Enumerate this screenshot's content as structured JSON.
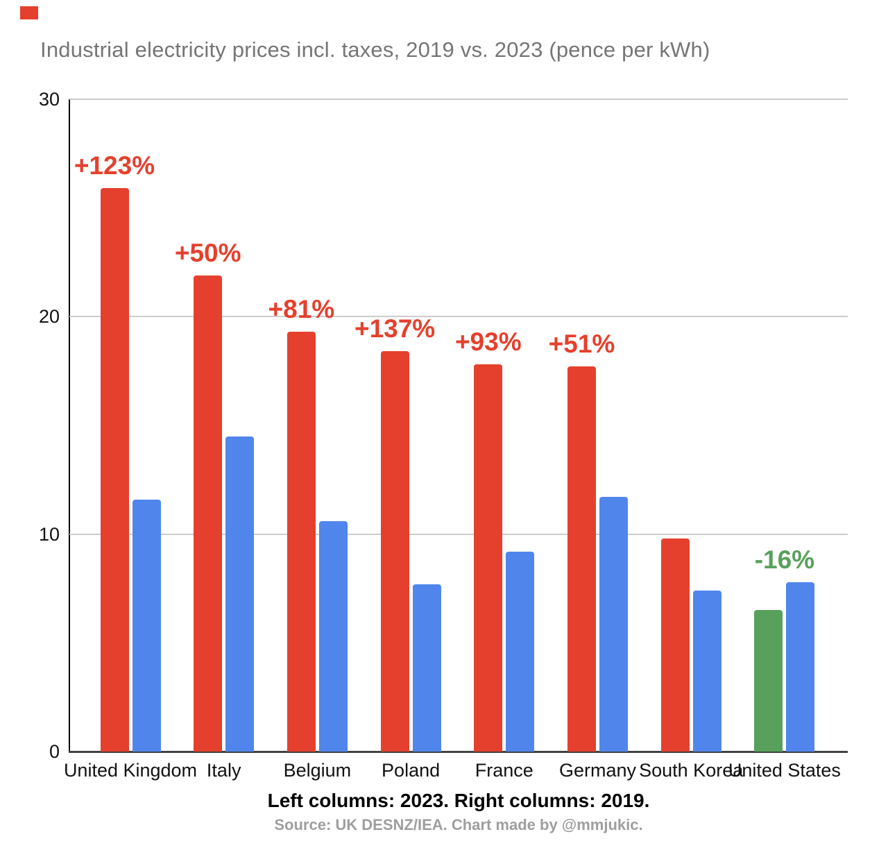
{
  "title": "Industrial electricity prices incl. taxes, 2019 vs. 2023 (pence per kWh)",
  "captions": {
    "legend_note": "Left columns: 2023. Right columns: 2019.",
    "source": "Source: UK DESNZ/IEA. Chart made by @mmjukic."
  },
  "colors": {
    "bar_2023": "#E5402D",
    "bar_2019": "#5086EC",
    "bar_decrease": "#58A15C",
    "annotation_increase": "#E5402D",
    "annotation_decrease": "#58A15C",
    "title_text": "#757575",
    "axis_text": "#111111",
    "gridline": "#CCCCCC",
    "y_axis_line": "#000000",
    "x_axis_line": "#424242",
    "legend_note_text": "#000000",
    "source_text": "#9E9E9E",
    "corner_marker": "#E5402D"
  },
  "chart_data": {
    "type": "bar",
    "title": "Industrial electricity prices incl. taxes, 2019 vs. 2023 (pence per kWh)",
    "xlabel": "",
    "ylabel": "pence per kWh",
    "ylim": [
      0,
      30
    ],
    "yticks": [
      0,
      10,
      20,
      30
    ],
    "grid": true,
    "legend_position": "none",
    "categories": [
      "United Kingdom",
      "Italy",
      "Belgium",
      "Poland",
      "France",
      "Germany",
      "South Korea",
      "United States"
    ],
    "series": [
      {
        "name": "2023",
        "values": [
          25.9,
          21.9,
          19.3,
          18.4,
          17.8,
          17.7,
          9.8,
          6.5
        ],
        "colors": [
          "#E5402D",
          "#E5402D",
          "#E5402D",
          "#E5402D",
          "#E5402D",
          "#E5402D",
          "#E5402D",
          "#58A15C"
        ]
      },
      {
        "name": "2019",
        "values": [
          11.6,
          14.5,
          10.6,
          7.7,
          9.2,
          11.7,
          7.4,
          7.8
        ],
        "colors": [
          "#5086EC",
          "#5086EC",
          "#5086EC",
          "#5086EC",
          "#5086EC",
          "#5086EC",
          "#5086EC",
          "#5086EC"
        ]
      }
    ],
    "annotations": [
      "+123%",
      "+50%",
      "+81%",
      "+137%",
      "+93%",
      "+51%",
      "",
      "-16%"
    ],
    "annotation_colors": [
      "#E5402D",
      "#E5402D",
      "#E5402D",
      "#E5402D",
      "#E5402D",
      "#E5402D",
      "",
      "#58A15C"
    ]
  }
}
